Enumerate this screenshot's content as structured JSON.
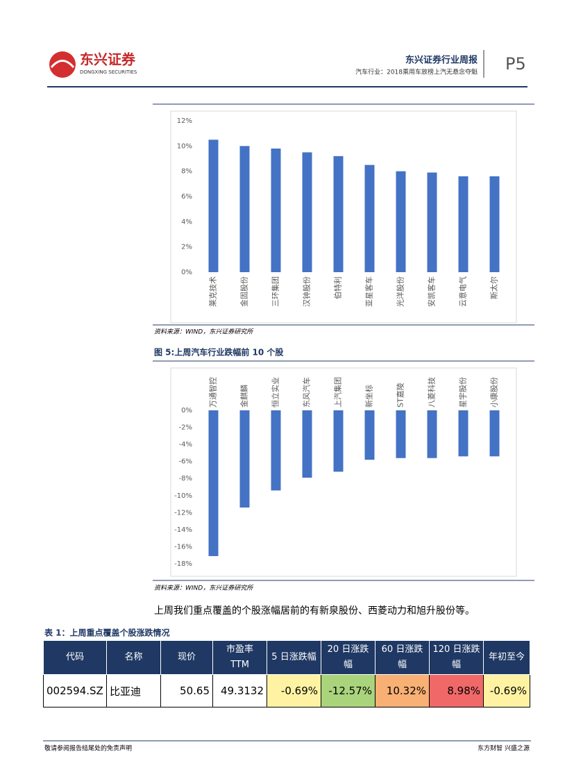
{
  "header": {
    "brand": "东兴证券",
    "brand_en": "DONGXING SECURITIES",
    "report": "东兴证券行业周报",
    "subtitle": "汽车行业：2018乘用车放榜上汽无悬念夺魁",
    "page": "P5"
  },
  "chart_data": [
    {
      "type": "bar",
      "categories": [
        "莱克技术",
        "金固股份",
        "三环集团",
        "汉钟股份",
        "伯特利",
        "亚星客车",
        "光洋股份",
        "安凯客车",
        "云意电气",
        "斯太尔"
      ],
      "values": [
        10.5,
        10.0,
        9.8,
        9.5,
        9.2,
        8.5,
        8.0,
        7.9,
        7.6,
        7.6
      ],
      "color": "#4472c4",
      "ylim": [
        0,
        12
      ],
      "yticks": [
        {
          "value": 0,
          "label": "0%"
        },
        {
          "value": 2,
          "label": "2%"
        },
        {
          "value": 4,
          "label": "4%"
        },
        {
          "value": 6,
          "label": "6%"
        },
        {
          "value": 8,
          "label": "8%"
        },
        {
          "value": 10,
          "label": "10%"
        },
        {
          "value": 12,
          "label": "12%"
        }
      ],
      "source": "资料来源：WIND，东兴证券研究所"
    },
    {
      "type": "bar",
      "title": "图 5:上周汽车行业跌幅前 10 个股",
      "categories": [
        "万通智控",
        "金麒麟",
        "恒立实业",
        "东风汽车",
        "上汽集团",
        "新坐标",
        "ST嘉陵",
        "八菱科技",
        "星宇股份",
        "小康股份"
      ],
      "values": [
        -17.1,
        -11.4,
        -9.4,
        -7.9,
        -7.2,
        -5.8,
        -5.6,
        -5.6,
        -5.4,
        -5.4
      ],
      "color": "#4472c4",
      "ylim": [
        -18,
        0
      ],
      "yticks": [
        {
          "value": 0,
          "label": "0%"
        },
        {
          "value": -2,
          "label": "-2%"
        },
        {
          "value": -4,
          "label": "-4%"
        },
        {
          "value": -6,
          "label": "-6%"
        },
        {
          "value": -8,
          "label": "-8%"
        },
        {
          "value": -10,
          "label": "-10%"
        },
        {
          "value": -12,
          "label": "-12%"
        },
        {
          "value": -14,
          "label": "-14%"
        },
        {
          "value": -16,
          "label": "-16%"
        },
        {
          "value": -18,
          "label": "-18%"
        }
      ],
      "source": "资料来源：WIND，东兴证券研究所"
    }
  ],
  "body": {
    "text": "上周我们重点覆盖的个股涨幅居前的有新泉股份、西菱动力和旭升股份等。"
  },
  "table": {
    "caption": "表 1：上周重点覆盖个股涨跌情况",
    "header": [
      "代码",
      "名称",
      "现价",
      "市盈率 TTM",
      "5 日涨跌幅",
      "20 日涨跌幅",
      "60 日涨跌幅",
      "120 日涨跌幅",
      "年初至今"
    ],
    "rows": [
      [
        "002594.SZ",
        "比亚迪",
        "50.65",
        "49.3132",
        "-0.69%",
        "-12.57%",
        "10.32%",
        "8.98%",
        "-0.69%"
      ]
    ]
  },
  "footer": {
    "left": "敬请参阅报告结尾处的免责声明",
    "right": "东方财智 兴盛之源"
  }
}
